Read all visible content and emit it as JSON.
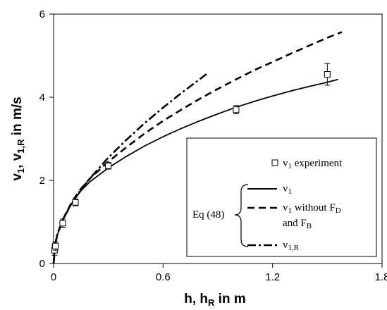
{
  "chart_data": {
    "type": "line",
    "xlabel": "h, h",
    "xlabel_sub": "R",
    "xlabel_tail": " in m",
    "ylabel_parts": [
      "v",
      "1",
      ", v",
      "1,R",
      " in m/s"
    ],
    "xlim": [
      0,
      1.8
    ],
    "ylim": [
      0,
      6
    ],
    "x_ticks": [
      0,
      0.6,
      1.2,
      1.8
    ],
    "x_tick_labels": [
      "0",
      "0.6",
      "1.2",
      "1.8"
    ],
    "y_ticks": [
      0,
      2,
      4,
      6
    ],
    "y_tick_labels": [
      "0",
      "2",
      "4",
      "6"
    ],
    "grid": false,
    "legend_position": "bottom-right",
    "series": [
      {
        "key": "v1",
        "style": "solid",
        "x": [
          0,
          0.01,
          0.02,
          0.05,
          0.1,
          0.15,
          0.2,
          0.3,
          0.4,
          0.5,
          0.6,
          0.7,
          0.8,
          0.9,
          1.0,
          1.1,
          1.2,
          1.3,
          1.4,
          1.5,
          1.56
        ],
        "y": [
          0,
          0.48,
          0.68,
          1.05,
          1.45,
          1.75,
          1.97,
          2.3,
          2.58,
          2.83,
          3.05,
          3.25,
          3.43,
          3.6,
          3.76,
          3.9,
          4.03,
          4.15,
          4.26,
          4.36,
          4.43
        ]
      },
      {
        "key": "v1_noFD",
        "style": "dashed",
        "x": [
          0,
          0.01,
          0.02,
          0.05,
          0.1,
          0.15,
          0.2,
          0.3,
          0.4,
          0.5,
          0.6,
          0.7,
          0.8,
          0.9,
          1.0,
          1.1,
          1.2,
          1.3,
          1.4,
          1.5,
          1.58
        ],
        "y": [
          0,
          0.48,
          0.68,
          1.05,
          1.48,
          1.8,
          2.05,
          2.45,
          2.8,
          3.13,
          3.43,
          3.7,
          3.96,
          4.2,
          4.43,
          4.65,
          4.85,
          5.05,
          5.24,
          5.43,
          5.57
        ]
      },
      {
        "key": "v1R",
        "style": "dashdot",
        "x": [
          0,
          0.01,
          0.02,
          0.05,
          0.1,
          0.15,
          0.2,
          0.3,
          0.4,
          0.5,
          0.6,
          0.7,
          0.8,
          0.85
        ],
        "y": [
          0,
          0.5,
          0.7,
          1.05,
          1.45,
          1.78,
          2.05,
          2.55,
          2.98,
          3.38,
          3.75,
          4.1,
          4.43,
          4.6
        ]
      }
    ],
    "experiment": {
      "x": [
        0.005,
        0.01,
        0.05,
        0.12,
        0.3,
        1.0,
        1.5
      ],
      "y": [
        0.32,
        0.42,
        0.97,
        1.47,
        2.35,
        3.7,
        4.55
      ],
      "err": [
        0.12,
        0.1,
        0.1,
        0.08,
        0.08,
        0.1,
        0.26
      ]
    },
    "legend": {
      "experiment_main": "v",
      "experiment_sub": "1",
      "experiment_tail": " experiment",
      "group_label": "Eq (48)",
      "v1_main": "v",
      "v1_sub": "1",
      "v1nofd_line1_main": "v",
      "v1nofd_line1_sub": "1",
      "v1nofd_line1_tail": " without F",
      "v1nofd_line1_tail_sub": "D",
      "v1nofd_line2_main": "and F",
      "v1nofd_line2_sub": "B",
      "v1r_main": "v",
      "v1r_sub": "1,R"
    }
  }
}
